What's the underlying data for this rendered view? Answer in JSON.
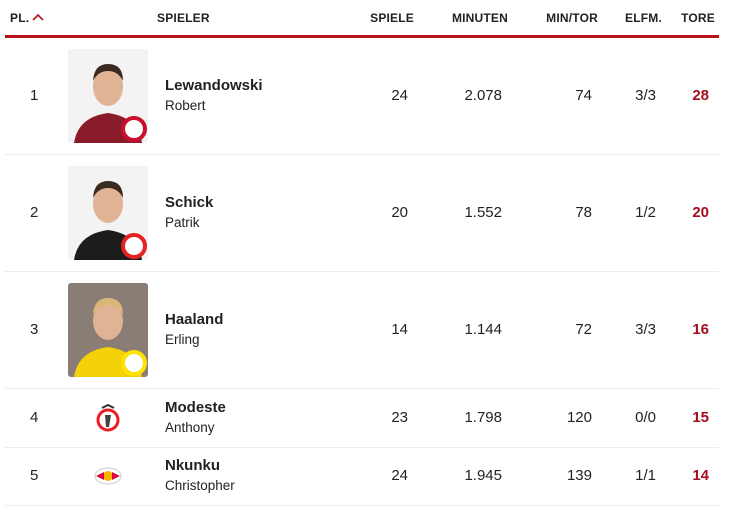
{
  "table": {
    "header": [
      "PL.",
      "SPIELER",
      "SPIELE",
      "MINUTEN",
      "MIN/TOR",
      "ELFM.",
      "TORE"
    ],
    "rows": [
      {
        "rank": "1",
        "last_name": "Lewandowski",
        "first_name": "Robert",
        "games": "24",
        "minutes": "2.078",
        "min_per_goal": "74",
        "penalties": "3/3",
        "goals": "28"
      },
      {
        "rank": "2",
        "last_name": "Schick",
        "first_name": "Patrik",
        "games": "20",
        "minutes": "1.552",
        "min_per_goal": "78",
        "penalties": "1/2",
        "goals": "20"
      },
      {
        "rank": "3",
        "last_name": "Haaland",
        "first_name": "Erling",
        "games": "14",
        "minutes": "1.144",
        "min_per_goal": "72",
        "penalties": "3/3",
        "goals": "16"
      },
      {
        "rank": "4",
        "last_name": "Modeste",
        "first_name": "Anthony",
        "games": "23",
        "minutes": "1.798",
        "min_per_goal": "120",
        "penalties": "0/0",
        "goals": "15"
      },
      {
        "rank": "5",
        "last_name": "Nkunku",
        "first_name": "Christopher",
        "games": "24",
        "minutes": "1.945",
        "min_per_goal": "139",
        "penalties": "1/1",
        "goals": "14"
      }
    ]
  }
}
